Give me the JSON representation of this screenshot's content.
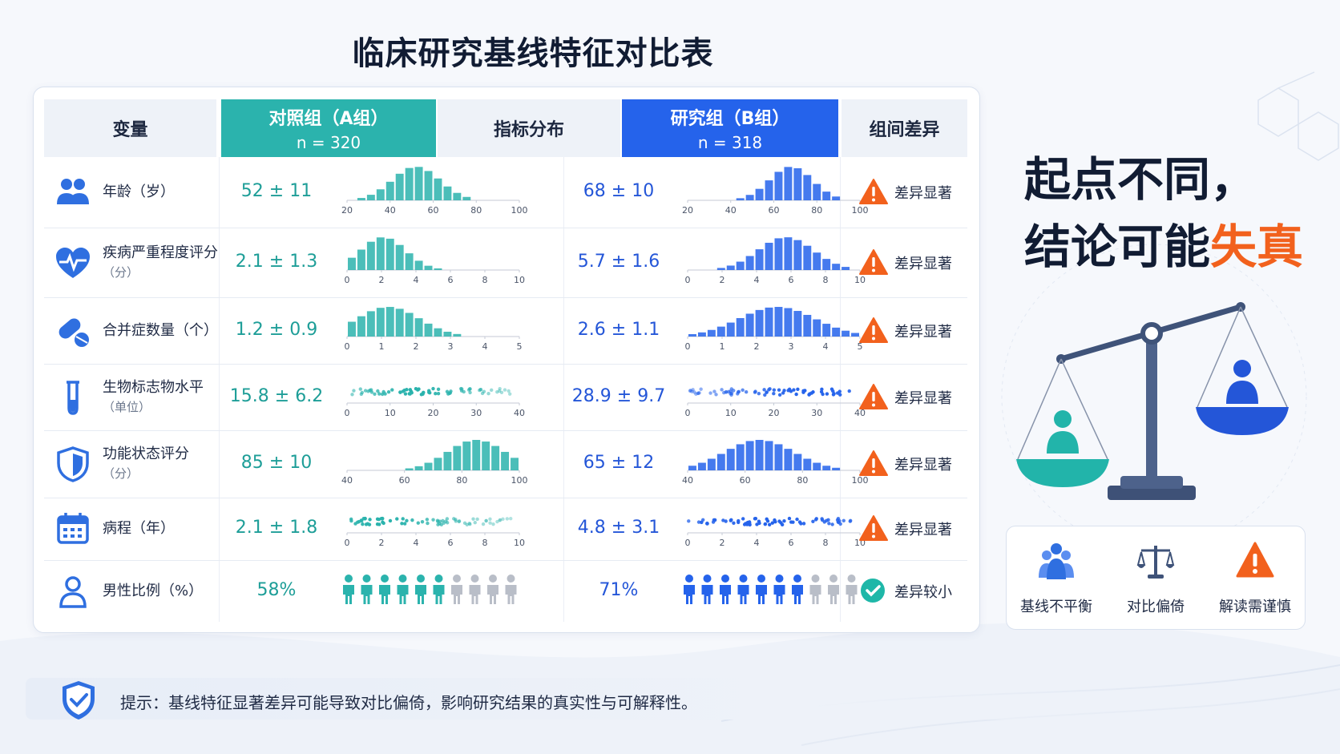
{
  "title": "临床研究基线特征对比表",
  "header": {
    "variable": "变量",
    "control_name": "对照组（A组）",
    "control_n": "n = 320",
    "distribution": "指标分布",
    "study_name": "研究组（B组）",
    "study_n": "n = 318",
    "difference": "组间差异"
  },
  "rows": [
    {
      "name": "年龄（岁）",
      "unit": "",
      "icon": "group-icon",
      "a_value": "52 ± 11",
      "b_value": "68 ± 10",
      "a_ticks": [
        "20",
        "40",
        "60",
        "80",
        "100"
      ],
      "b_ticks": [
        "20",
        "40",
        "60",
        "80",
        "100"
      ],
      "diff": "差异显著",
      "diff_icon": "warning-icon"
    },
    {
      "name": "疾病严重程度评分",
      "unit": "（分）",
      "icon": "heart-pulse-icon",
      "a_value": "2.1 ± 1.3",
      "b_value": "5.7 ± 1.6",
      "a_ticks": [
        "0",
        "2",
        "4",
        "6",
        "8",
        "10"
      ],
      "b_ticks": [
        "0",
        "2",
        "4",
        "6",
        "8",
        "10"
      ],
      "diff": "差异显著",
      "diff_icon": "warning-icon"
    },
    {
      "name": "合并症数量（个）",
      "unit": "",
      "icon": "pills-icon",
      "a_value": "1.2 ± 0.9",
      "b_value": "2.6 ± 1.1",
      "a_ticks": [
        "0",
        "1",
        "2",
        "3",
        "4",
        "5"
      ],
      "b_ticks": [
        "0",
        "1",
        "2",
        "3",
        "4",
        "5"
      ],
      "diff": "差异显著",
      "diff_icon": "warning-icon"
    },
    {
      "name": "生物标志物水平",
      "unit": "（单位）",
      "icon": "test-tube-icon",
      "a_value": "15.8 ± 6.2",
      "b_value": "28.9 ± 9.7",
      "a_ticks": [
        "0",
        "10",
        "20",
        "30",
        "40"
      ],
      "b_ticks": [
        "0",
        "10",
        "20",
        "30",
        "40"
      ],
      "diff": "差异显著",
      "diff_icon": "warning-icon"
    },
    {
      "name": "功能状态评分",
      "unit": "（分）",
      "icon": "shield-icon",
      "a_value": "85 ± 10",
      "b_value": "65 ± 12",
      "a_ticks": [
        "40",
        "60",
        "80",
        "100"
      ],
      "b_ticks": [
        "40",
        "60",
        "80",
        "100"
      ],
      "diff": "差异显著",
      "diff_icon": "warning-icon"
    },
    {
      "name": "病程（年）",
      "unit": "",
      "icon": "calendar-icon",
      "a_value": "2.1 ± 1.8",
      "b_value": "4.8 ± 3.1",
      "a_ticks": [
        "0",
        "2",
        "4",
        "6",
        "8",
        "10"
      ],
      "b_ticks": [
        "0",
        "2",
        "4",
        "6",
        "8",
        "10"
      ],
      "diff": "差异显著",
      "diff_icon": "warning-icon"
    },
    {
      "name": "男性比例（%）",
      "unit": "",
      "icon": "person-icon",
      "a_value": "58%",
      "b_value": "71%",
      "a_ticks": [],
      "b_ticks": [],
      "diff": "差异较小",
      "diff_icon": "check-icon"
    }
  ],
  "colors": {
    "control": "#2bb3ad",
    "study": "#2563eb",
    "warning": "#f2611d",
    "check": "#1eb7a8"
  },
  "slogan": {
    "line1": "起点不同，",
    "line2_plain": "结论可能",
    "line2_highlight": "失真"
  },
  "legend": [
    {
      "label": "基线不平衡",
      "icon": "people-group-icon"
    },
    {
      "label": "对比偏倚",
      "icon": "balance-icon"
    },
    {
      "label": "解读需谨慎",
      "icon": "warning-icon"
    }
  ],
  "tip": "提示：基线特征显著差异可能导致对比偏倚，影响研究结果的真实性与可解释性。",
  "chart_data": {
    "type": "bar",
    "series": [
      {
        "name": "对照组（A组）",
        "means": [
          52,
          2.1,
          1.2,
          15.8,
          85,
          2.1
        ],
        "sds": [
          11,
          1.3,
          0.9,
          6.2,
          10,
          1.8
        ],
        "male_percent": 58
      },
      {
        "name": "研究组（B组）",
        "means": [
          68,
          5.7,
          2.6,
          28.9,
          65,
          4.8
        ],
        "sds": [
          10,
          1.6,
          1.1,
          9.7,
          12,
          3.1
        ],
        "male_percent": 71
      }
    ],
    "axis_ranges": [
      [
        20,
        100
      ],
      [
        0,
        10
      ],
      [
        0,
        5
      ],
      [
        0,
        40
      ],
      [
        40,
        100
      ],
      [
        0,
        10
      ]
    ],
    "plot_kinds": [
      "histogram",
      "histogram",
      "histogram",
      "dots",
      "histogram",
      "dots"
    ]
  }
}
